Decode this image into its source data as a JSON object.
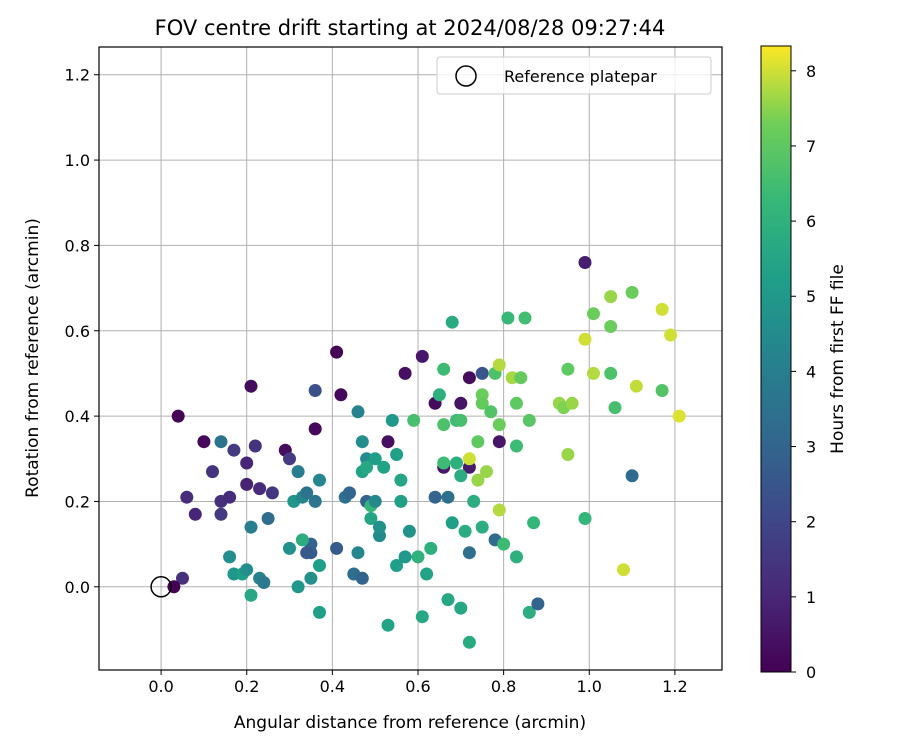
{
  "chart_data": {
    "type": "scatter",
    "title": "FOV centre drift starting at 2024/08/28 09:27:44",
    "xlabel": "Angular distance from reference (arcmin)",
    "ylabel": "Rotation from reference (arcmin)",
    "xlim": [
      -0.145,
      1.31
    ],
    "ylim": [
      -0.195,
      1.265
    ],
    "xticks": [
      0.0,
      0.2,
      0.4,
      0.6,
      0.8,
      1.0,
      1.2
    ],
    "yticks": [
      0.0,
      0.2,
      0.4,
      0.6,
      0.8,
      1.0,
      1.2
    ],
    "xtick_labels": [
      "0.0",
      "0.2",
      "0.4",
      "0.6",
      "0.8",
      "1.0",
      "1.2"
    ],
    "ytick_labels": [
      "0.0",
      "0.2",
      "0.4",
      "0.6",
      "0.8",
      "1.0",
      "1.2"
    ],
    "grid": true,
    "legend": {
      "position": "top-right",
      "label": "Reference platepar"
    },
    "reference_point": {
      "x": 0.0,
      "y": 0.0
    },
    "colorbar": {
      "label": "Hours from first FF file",
      "colormap": "viridis",
      "range": [
        0,
        8.33
      ],
      "ticks": [
        0,
        1,
        2,
        3,
        4,
        5,
        6,
        7,
        8
      ],
      "tick_labels": [
        "0",
        "1",
        "2",
        "3",
        "4",
        "5",
        "6",
        "7",
        "8"
      ]
    },
    "points": [
      [
        0.04,
        0.4,
        0.1
      ],
      [
        0.1,
        0.34,
        0.2
      ],
      [
        0.21,
        0.47,
        0.3
      ],
      [
        0.29,
        0.32,
        0.3
      ],
      [
        0.36,
        0.37,
        0.2
      ],
      [
        0.41,
        0.55,
        0.1
      ],
      [
        0.42,
        0.45,
        0.2
      ],
      [
        0.53,
        0.34,
        0.4
      ],
      [
        0.57,
        0.5,
        0.4
      ],
      [
        0.61,
        0.54,
        0.6
      ],
      [
        0.64,
        0.43,
        0.3
      ],
      [
        0.7,
        0.43,
        0.5
      ],
      [
        0.72,
        0.49,
        0.3
      ],
      [
        0.66,
        0.28,
        0.6
      ],
      [
        0.72,
        0.28,
        0.7
      ],
      [
        0.79,
        0.34,
        0.6
      ],
      [
        0.99,
        0.76,
        0.8
      ],
      [
        0.06,
        0.21,
        1.2
      ],
      [
        0.08,
        0.17,
        1.0
      ],
      [
        0.12,
        0.27,
        1.4
      ],
      [
        0.14,
        0.2,
        1.3
      ],
      [
        0.14,
        0.17,
        1.6
      ],
      [
        0.16,
        0.21,
        1.2
      ],
      [
        0.17,
        0.32,
        1.6
      ],
      [
        0.2,
        0.29,
        1.0
      ],
      [
        0.2,
        0.24,
        0.9
      ],
      [
        0.22,
        0.33,
        1.4
      ],
      [
        0.23,
        0.23,
        1.1
      ],
      [
        0.26,
        0.22,
        1.5
      ],
      [
        0.3,
        0.3,
        1.6
      ],
      [
        0.05,
        0.02,
        1.3
      ],
      [
        0.14,
        0.34,
        3.6
      ],
      [
        0.16,
        0.07,
        4.6
      ],
      [
        0.17,
        0.03,
        4.9
      ],
      [
        0.19,
        0.03,
        5.2
      ],
      [
        0.2,
        0.04,
        4.6
      ],
      [
        0.21,
        0.14,
        4.0
      ],
      [
        0.21,
        -0.02,
        5.6
      ],
      [
        0.23,
        0.02,
        4.2
      ],
      [
        0.24,
        0.01,
        3.8
      ],
      [
        0.25,
        0.16,
        3.3
      ],
      [
        0.3,
        0.09,
        4.7
      ],
      [
        0.31,
        0.2,
        4.9
      ],
      [
        0.32,
        0.27,
        4.0
      ],
      [
        0.33,
        0.21,
        4.3
      ],
      [
        0.34,
        0.22,
        3.6
      ],
      [
        0.35,
        0.1,
        3.0
      ],
      [
        0.35,
        0.08,
        2.8
      ],
      [
        0.36,
        0.2,
        3.7
      ],
      [
        0.37,
        0.25,
        4.3
      ],
      [
        0.37,
        0.05,
        5.2
      ],
      [
        0.37,
        -0.06,
        5.3
      ],
      [
        0.35,
        0.02,
        4.7
      ],
      [
        0.32,
        0.0,
        4.9
      ],
      [
        0.33,
        0.11,
        5.8
      ],
      [
        0.34,
        0.08,
        2.6
      ],
      [
        0.36,
        0.46,
        2.3
      ],
      [
        0.41,
        0.09,
        2.7
      ],
      [
        0.43,
        0.21,
        3.5
      ],
      [
        0.44,
        0.22,
        3.1
      ],
      [
        0.45,
        0.03,
        3.4
      ],
      [
        0.46,
        0.08,
        4.3
      ],
      [
        0.47,
        0.02,
        3.0
      ],
      [
        0.46,
        0.41,
        4.2
      ],
      [
        0.47,
        0.34,
        4.6
      ],
      [
        0.47,
        0.27,
        5.4
      ],
      [
        0.48,
        0.3,
        4.5
      ],
      [
        0.48,
        0.28,
        5.6
      ],
      [
        0.48,
        0.2,
        3.0
      ],
      [
        0.49,
        0.19,
        6.2
      ],
      [
        0.49,
        0.16,
        5.5
      ],
      [
        0.5,
        0.3,
        5.2
      ],
      [
        0.5,
        0.2,
        4.4
      ],
      [
        0.51,
        0.12,
        4.5
      ],
      [
        0.51,
        0.14,
        4.7
      ],
      [
        0.52,
        0.28,
        5.4
      ],
      [
        0.53,
        -0.09,
        5.4
      ],
      [
        0.54,
        0.39,
        5.0
      ],
      [
        0.55,
        0.31,
        5.3
      ],
      [
        0.55,
        0.05,
        5.2
      ],
      [
        0.56,
        0.25,
        5.5
      ],
      [
        0.56,
        0.2,
        5.3
      ],
      [
        0.57,
        0.07,
        5.0
      ],
      [
        0.58,
        0.13,
        4.8
      ],
      [
        0.59,
        0.39,
        6.6
      ],
      [
        0.6,
        0.07,
        6.0
      ],
      [
        0.61,
        -0.07,
        5.6
      ],
      [
        0.62,
        0.03,
        5.4
      ],
      [
        0.63,
        0.09,
        5.9
      ],
      [
        0.64,
        0.21,
        3.0
      ],
      [
        0.65,
        0.45,
        5.9
      ],
      [
        0.66,
        0.38,
        6.7
      ],
      [
        0.66,
        0.29,
        6.4
      ],
      [
        0.66,
        0.51,
        6.4
      ],
      [
        0.67,
        0.21,
        3.5
      ],
      [
        0.67,
        -0.03,
        5.6
      ],
      [
        0.68,
        0.62,
        5.7
      ],
      [
        0.68,
        0.15,
        5.3
      ],
      [
        0.69,
        0.29,
        5.9
      ],
      [
        0.69,
        0.39,
        6.4
      ],
      [
        0.7,
        0.39,
        6.6
      ],
      [
        0.7,
        0.26,
        5.8
      ],
      [
        0.7,
        -0.05,
        5.6
      ],
      [
        0.71,
        0.13,
        5.8
      ],
      [
        0.72,
        0.08,
        3.5
      ],
      [
        0.72,
        -0.13,
        5.7
      ],
      [
        0.72,
        0.3,
        8.0
      ],
      [
        0.73,
        0.2,
        5.8
      ],
      [
        0.74,
        0.34,
        7.0
      ],
      [
        0.74,
        0.25,
        7.6
      ],
      [
        0.75,
        0.5,
        2.5
      ],
      [
        0.75,
        0.45,
        7.2
      ],
      [
        0.75,
        0.43,
        7.1
      ],
      [
        0.75,
        0.14,
        5.8
      ],
      [
        0.76,
        0.27,
        7.6
      ],
      [
        0.77,
        0.41,
        6.8
      ],
      [
        0.78,
        0.11,
        3.3
      ],
      [
        0.78,
        0.5,
        6.7
      ],
      [
        0.79,
        0.52,
        7.8
      ],
      [
        0.79,
        0.38,
        7.2
      ],
      [
        0.79,
        0.18,
        7.8
      ],
      [
        0.8,
        0.1,
        6.4
      ],
      [
        0.81,
        0.63,
        6.3
      ],
      [
        0.82,
        0.49,
        7.7
      ],
      [
        0.83,
        0.43,
        7.0
      ],
      [
        0.83,
        0.33,
        6.4
      ],
      [
        0.83,
        0.07,
        5.9
      ],
      [
        0.84,
        0.49,
        7.1
      ],
      [
        0.85,
        0.63,
        6.5
      ],
      [
        0.86,
        0.39,
        6.9
      ],
      [
        0.86,
        -0.06,
        5.8
      ],
      [
        0.87,
        0.15,
        6.2
      ],
      [
        0.88,
        -0.04,
        3.0
      ],
      [
        0.93,
        0.43,
        7.6
      ],
      [
        0.94,
        0.42,
        7.4
      ],
      [
        0.95,
        0.31,
        7.6
      ],
      [
        0.95,
        0.51,
        7.0
      ],
      [
        0.96,
        0.43,
        7.6
      ],
      [
        0.99,
        0.58,
        8.0
      ],
      [
        0.99,
        0.16,
        6.2
      ],
      [
        1.01,
        0.64,
        7.2
      ],
      [
        1.01,
        0.5,
        7.8
      ],
      [
        1.05,
        0.61,
        7.2
      ],
      [
        1.05,
        0.68,
        7.6
      ],
      [
        1.05,
        0.5,
        6.7
      ],
      [
        1.06,
        0.42,
        6.6
      ],
      [
        1.08,
        0.04,
        8.0
      ],
      [
        1.1,
        0.26,
        3.2
      ],
      [
        1.1,
        0.69,
        7.2
      ],
      [
        1.11,
        0.47,
        7.9
      ],
      [
        1.17,
        0.65,
        8.0
      ],
      [
        1.17,
        0.46,
        6.8
      ],
      [
        1.19,
        0.59,
        8.0
      ],
      [
        1.21,
        0.4,
        8.1
      ],
      [
        0.03,
        0.0,
        0.0
      ]
    ]
  }
}
